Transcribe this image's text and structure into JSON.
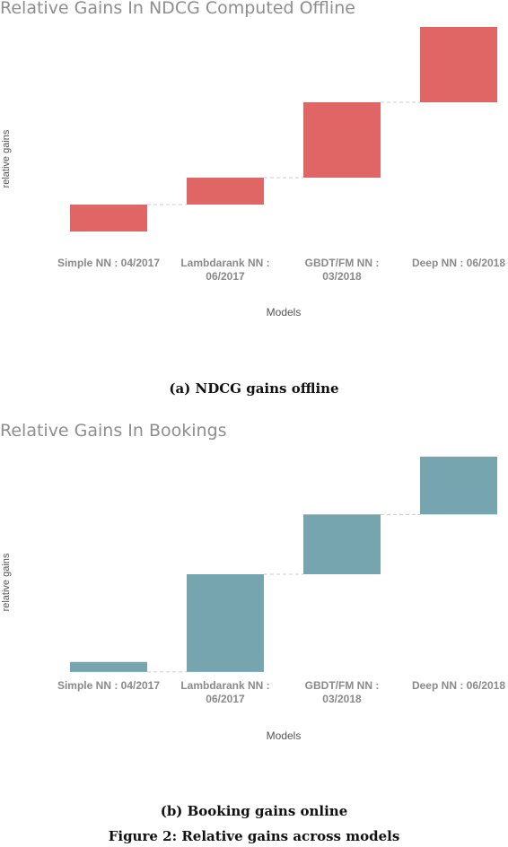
{
  "charts": [
    {
      "title": "Relative Gains In NDCG Computed Offline",
      "ylabel": "relative gains",
      "xlabel": "Models",
      "caption": "(a) NDCG gains offline"
    },
    {
      "title": "Relative Gains In Bookings",
      "ylabel": "relative gains",
      "xlabel": "Models",
      "caption": "(b) Booking gains online"
    }
  ],
  "figure_caption": "Figure 2: Relative gains across models",
  "colors": {
    "chart1_bar": "#e06666",
    "chart2_bar": "#76a5af",
    "connector": "#cccccc",
    "tick_text": "#8a8a8a"
  },
  "chart_data": [
    {
      "type": "bar",
      "subtype": "waterfall",
      "title": "Relative Gains In NDCG Computed Offline",
      "xlabel": "Models",
      "ylabel": "relative gains",
      "categories": [
        "Simple NN : 04/2017",
        "Lambdarank NN : 06/2017",
        "GBDT/FM NN : 03/2018",
        "Deep NN : 06/2018"
      ],
      "category_lines": [
        [
          "Simple NN : 04/2017"
        ],
        [
          "Lambdarank NN :",
          "06/2017"
        ],
        [
          "GBDT/FM NN :",
          "03/2018"
        ],
        [
          "Deep NN : 06/2018"
        ]
      ],
      "values": [
        1.0,
        1.0,
        2.8,
        2.8
      ],
      "ylim": [
        -1.0,
        7.6
      ],
      "grid": false,
      "y_tick_labels": false
    },
    {
      "type": "bar",
      "subtype": "waterfall",
      "title": "Relative Gains In Bookings",
      "xlabel": "Models",
      "ylabel": "relative gains",
      "categories": [
        "Simple NN : 04/2017",
        "Lambdarank NN : 06/2017",
        "GBDT/FM NN : 03/2018",
        "Deep NN : 06/2018"
      ],
      "category_lines": [
        [
          "Simple NN : 04/2017"
        ],
        [
          "Lambdarank NN :",
          "06/2017"
        ],
        [
          "GBDT/FM NN :",
          "03/2018"
        ],
        [
          "Deep NN : 06/2018"
        ]
      ],
      "values": [
        -0.5,
        4.9,
        3.0,
        2.9
      ],
      "ylim": [
        -1.0,
        10.7
      ],
      "grid": false,
      "y_tick_labels": false
    }
  ]
}
